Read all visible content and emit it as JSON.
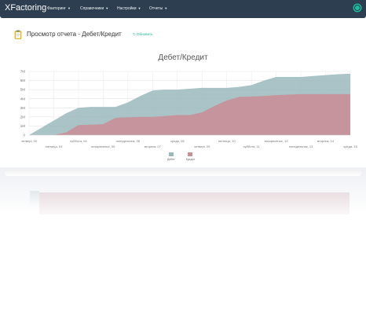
{
  "app": {
    "brand": "XFactoring"
  },
  "nav": {
    "items": [
      {
        "label": "Факторинг"
      },
      {
        "label": "Справочники"
      },
      {
        "label": "Настройки"
      },
      {
        "label": "Отчеты"
      }
    ]
  },
  "header": {
    "title": "Просмотр отчета - Дебет/Кредит",
    "refresh_label": "Обновить"
  },
  "colors": {
    "navbar": "#2d3e50",
    "accent": "#1abc9c",
    "debit": "#9bb8bd",
    "credit": "#c98f97"
  },
  "chart_data": {
    "type": "area",
    "title": "Дебет/Кредит",
    "y_tick_labels": [
      "0",
      "1M",
      "2M",
      "3M",
      "4M",
      "5M",
      "6M",
      "7M"
    ],
    "ylim": [
      0,
      7000000
    ],
    "x_tick_labels": [
      "четверг, 02",
      "пятница, 03",
      "суббота, 04",
      "воскресенье, 05",
      "понедельник, 06",
      "вторник, 07",
      "среда, 08",
      "четверг, 09",
      "пятница, 10",
      "суббота, 11",
      "воскресенье, 12",
      "понедельник, 13",
      "вторник, 14",
      "среда, 15"
    ],
    "x": [
      2,
      2.5,
      3,
      3.5,
      4,
      4.5,
      5,
      5.5,
      6,
      6.5,
      7,
      7.5,
      8,
      8.5,
      9,
      9.5,
      10,
      10.5,
      11,
      11.5,
      12,
      12.5,
      13,
      13.5,
      14,
      14.5,
      15
    ],
    "grid": true,
    "legend_position": "bottom",
    "series": [
      {
        "name": "Дебет",
        "color": "#9bb8bd",
        "values": [
          0,
          800000,
          1600000,
          2400000,
          3000000,
          3100000,
          3100000,
          3100000,
          3600000,
          4300000,
          4900000,
          5000000,
          5000000,
          5100000,
          5200000,
          5200000,
          5200000,
          5300000,
          5500000,
          6000000,
          6400000,
          6400000,
          6400000,
          6500000,
          6600000,
          6700000,
          6750000
        ]
      },
      {
        "name": "Кредит",
        "color": "#c98f97",
        "values": [
          0,
          0,
          0,
          300000,
          1100000,
          1150000,
          1200000,
          1900000,
          1950000,
          2000000,
          2000000,
          2100000,
          2200000,
          2200000,
          2500000,
          3200000,
          3800000,
          4200000,
          4250000,
          4300000,
          4400000,
          4450000,
          4500000,
          4500000,
          4500000,
          4500000,
          4500000
        ]
      }
    ]
  }
}
